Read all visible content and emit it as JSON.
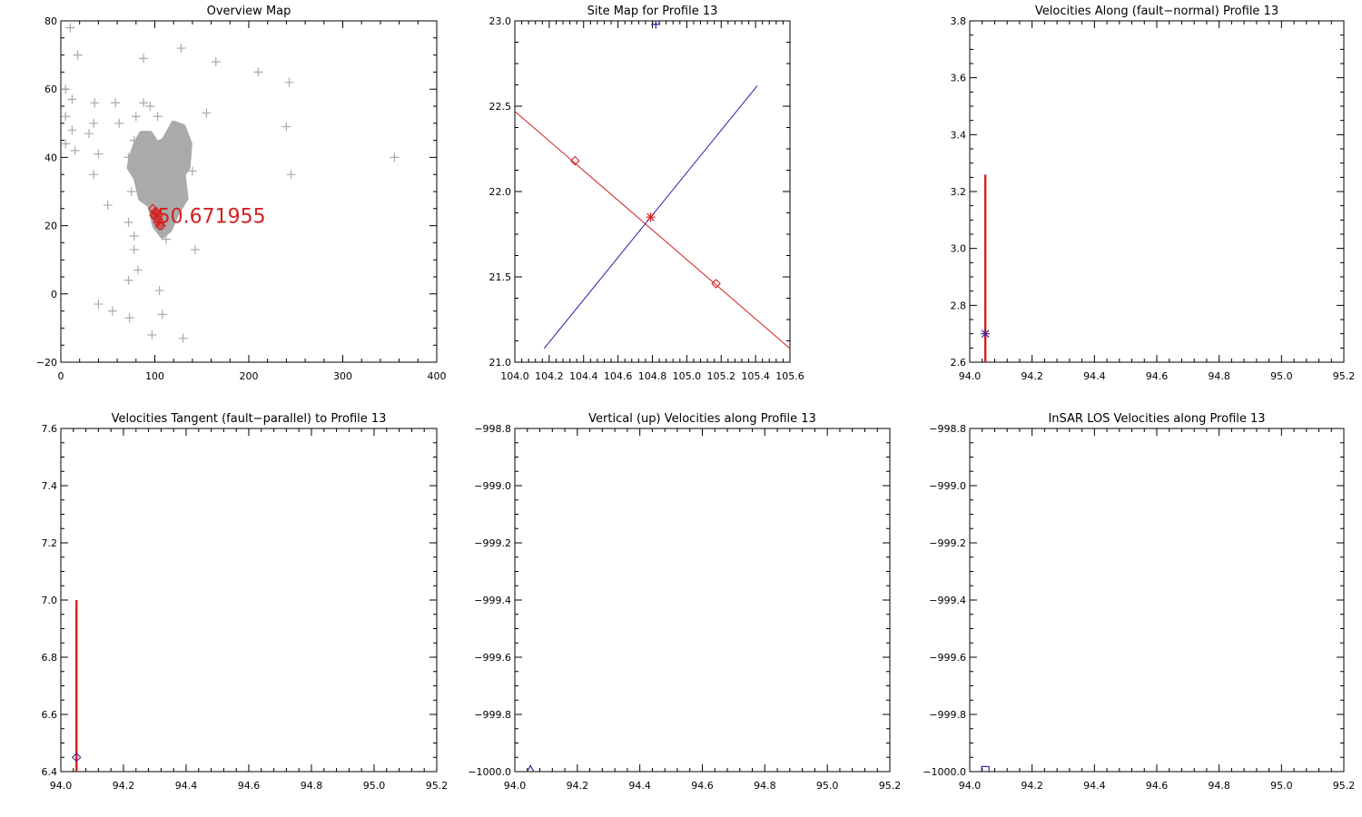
{
  "chart_data": [
    {
      "id": "overview",
      "type": "scatter",
      "title": "Overview Map",
      "xlim": [
        0,
        400
      ],
      "ylim": [
        -20,
        80
      ],
      "xticks": [
        0,
        100,
        200,
        300,
        400
      ],
      "xtick_labels": [
        "0",
        "100",
        "200",
        "300",
        "400"
      ],
      "yticks": [
        -20,
        0,
        20,
        40,
        60,
        80
      ],
      "ytick_labels": [
        "−20",
        "0",
        "20",
        "40",
        "60",
        "80"
      ],
      "annotation": {
        "text": "50.671955",
        "x": 103,
        "y": 23,
        "color": "#d42020"
      },
      "series": [
        {
          "marker": "plus",
          "color": "#aaaaaa",
          "points": [
            [
              10,
              78
            ],
            [
              18,
              70
            ],
            [
              88,
              69
            ],
            [
              128,
              72
            ],
            [
              165,
              68
            ],
            [
              210,
              65
            ],
            [
              243,
              62
            ],
            [
              5,
              60
            ],
            [
              12,
              57
            ],
            [
              36,
              56
            ],
            [
              58,
              56
            ],
            [
              88,
              56
            ],
            [
              95,
              55
            ],
            [
              155,
              53
            ],
            [
              103,
              52
            ],
            [
              80,
              52
            ],
            [
              5,
              52
            ],
            [
              35,
              50
            ],
            [
              62,
              50
            ],
            [
              240,
              49
            ],
            [
              12,
              48
            ],
            [
              30,
              47
            ],
            [
              78,
              45
            ],
            [
              124,
              45
            ],
            [
              5,
              44
            ],
            [
              15,
              42
            ],
            [
              40,
              41
            ],
            [
              72,
              40
            ],
            [
              355,
              40
            ],
            [
              112,
              38
            ],
            [
              140,
              36
            ],
            [
              245,
              35
            ],
            [
              35,
              35
            ],
            [
              105,
              33
            ],
            [
              75,
              30
            ],
            [
              130,
              28
            ],
            [
              50,
              26
            ],
            [
              112,
              24
            ],
            [
              72,
              21
            ],
            [
              108,
              20
            ],
            [
              112,
              18
            ],
            [
              78,
              17
            ],
            [
              143,
              13
            ],
            [
              78,
              13
            ],
            [
              82,
              7
            ],
            [
              72,
              4
            ],
            [
              105,
              1
            ],
            [
              40,
              -3
            ],
            [
              55,
              -5
            ],
            [
              73,
              -7
            ],
            [
              108,
              -6
            ],
            [
              97,
              -12
            ],
            [
              130,
              -13
            ],
            [
              112,
              16
            ]
          ]
        },
        {
          "marker": "plus-cluster",
          "color": "#aaaaaa",
          "blobs": [
            [
              [
                75,
                40
              ],
              [
                80,
                44
              ],
              [
                86,
                47
              ],
              [
                95,
                47
              ],
              [
                102,
                44
              ],
              [
                110,
                45
              ],
              [
                120,
                50
              ],
              [
                130,
                49
              ],
              [
                137,
                44
              ],
              [
                135,
                37
              ],
              [
                130,
                35
              ],
              [
                133,
                28
              ],
              [
                124,
                24
              ],
              [
                116,
                19
              ],
              [
                108,
                17
              ],
              [
                100,
                20
              ],
              [
                95,
                26
              ],
              [
                85,
                28
              ],
              [
                80,
                34
              ],
              [
                73,
                37
              ]
            ]
          ]
        },
        {
          "marker": "diamond",
          "color": "#d42020",
          "points": [
            [
              98,
              25
            ],
            [
              100,
              24
            ],
            [
              101,
              23
            ],
            [
              102,
              22
            ],
            [
              103,
              21
            ],
            [
              104,
              22
            ],
            [
              105,
              20
            ],
            [
              106,
              21
            ],
            [
              99,
              23
            ],
            [
              102,
              24
            ],
            [
              104,
              23
            ],
            [
              107,
              20
            ]
          ]
        }
      ]
    },
    {
      "id": "site",
      "type": "line",
      "title": "Site Map for Profile 13",
      "xlim": [
        104.0,
        105.6
      ],
      "ylim": [
        21.0,
        23.0
      ],
      "xticks": [
        104.0,
        104.2,
        104.4,
        104.6,
        104.8,
        105.0,
        105.2,
        105.4,
        105.6
      ],
      "xtick_labels": [
        "104.0",
        "104.2",
        "104.4",
        "104.6",
        "104.8",
        "105.0",
        "105.2",
        "105.4",
        "105.6"
      ],
      "yticks": [
        21.0,
        21.5,
        22.0,
        22.5,
        23.0
      ],
      "ytick_labels": [
        "21.0",
        "21.5",
        "22.0",
        "22.5",
        "23.0"
      ],
      "series": [
        {
          "style": "line",
          "color": "#d42020",
          "points": [
            [
              104.0,
              22.47
            ],
            [
              105.6,
              21.08
            ]
          ]
        },
        {
          "style": "line",
          "color": "#2020a0",
          "points": [
            [
              104.17,
              21.08
            ],
            [
              105.41,
              22.62
            ]
          ]
        },
        {
          "style": "markers",
          "marker": "diamond",
          "color": "#d42020",
          "points": [
            [
              104.35,
              22.18
            ],
            [
              105.17,
              21.46
            ]
          ]
        },
        {
          "style": "markers",
          "marker": "asterisk",
          "color": "#d42020",
          "points": [
            [
              104.79,
              21.85
            ]
          ]
        },
        {
          "style": "markers",
          "marker": "plus",
          "color": "#2020a0",
          "points": [
            [
              104.82,
              22.98
            ]
          ]
        }
      ]
    },
    {
      "id": "along",
      "type": "line",
      "title": "Velocities Along (fault−normal) Profile 13",
      "xlim": [
        94.0,
        95.2
      ],
      "ylim": [
        2.6,
        3.8
      ],
      "xticks": [
        94.0,
        94.2,
        94.4,
        94.6,
        94.8,
        95.0,
        95.2
      ],
      "xtick_labels": [
        "94.0",
        "94.2",
        "94.4",
        "94.6",
        "94.8",
        "95.0",
        "95.2"
      ],
      "yticks": [
        2.6,
        2.8,
        3.0,
        3.2,
        3.4,
        3.6,
        3.8
      ],
      "ytick_labels": [
        "2.6",
        "2.8",
        "3.0",
        "3.2",
        "3.4",
        "3.6",
        "3.8"
      ],
      "series": [
        {
          "style": "errorbar",
          "color": "#d42020",
          "points": [
            [
              94.05,
              2.6
            ],
            [
              94.05,
              3.26
            ]
          ]
        },
        {
          "style": "markers",
          "marker": "asterisk",
          "color": "#502090",
          "points": [
            [
              94.05,
              2.7
            ]
          ]
        }
      ]
    },
    {
      "id": "tangent",
      "type": "line",
      "title": "Velocities Tangent (fault−parallel) to Profile 13",
      "xlim": [
        94.0,
        95.2
      ],
      "ylim": [
        6.4,
        7.6
      ],
      "xticks": [
        94.0,
        94.2,
        94.4,
        94.6,
        94.8,
        95.0,
        95.2
      ],
      "xtick_labels": [
        "94.0",
        "94.2",
        "94.4",
        "94.6",
        "94.8",
        "95.0",
        "95.2"
      ],
      "yticks": [
        6.4,
        6.6,
        6.8,
        7.0,
        7.2,
        7.4,
        7.6
      ],
      "ytick_labels": [
        "6.4",
        "6.6",
        "6.8",
        "7.0",
        "7.2",
        "7.4",
        "7.6"
      ],
      "series": [
        {
          "style": "errorbar",
          "color": "#d42020",
          "points": [
            [
              94.05,
              6.4
            ],
            [
              94.05,
              7.0
            ]
          ]
        },
        {
          "style": "markers",
          "marker": "diamond",
          "color": "#502090",
          "points": [
            [
              94.05,
              6.45
            ]
          ]
        }
      ]
    },
    {
      "id": "vertical",
      "type": "line",
      "title": "Vertical (up) Velocities along Profile 13",
      "xlim": [
        94.0,
        95.2
      ],
      "ylim": [
        -1000.0,
        -998.8
      ],
      "xticks": [
        94.0,
        94.2,
        94.4,
        94.6,
        94.8,
        95.0,
        95.2
      ],
      "xtick_labels": [
        "94.0",
        "94.2",
        "94.4",
        "94.6",
        "94.8",
        "95.0",
        "95.2"
      ],
      "yticks": [
        -1000.0,
        -999.8,
        -999.6,
        -999.4,
        -999.2,
        -999.0,
        -998.8
      ],
      "ytick_labels": [
        "−1000.0",
        "−999.8",
        "−999.6",
        "−999.4",
        "−999.2",
        "−999.0",
        "−998.8"
      ],
      "series": [
        {
          "style": "markers",
          "marker": "triangle",
          "color": "#2020a0",
          "points": [
            [
              94.05,
              -999.995
            ]
          ]
        }
      ]
    },
    {
      "id": "insar",
      "type": "line",
      "title": "InSAR LOS Velocities along Profile 13",
      "xlim": [
        94.0,
        95.2
      ],
      "ylim": [
        -1000.0,
        -998.8
      ],
      "xticks": [
        94.0,
        94.2,
        94.4,
        94.6,
        94.8,
        95.0,
        95.2
      ],
      "xtick_labels": [
        "94.0",
        "94.2",
        "94.4",
        "94.6",
        "94.8",
        "95.0",
        "95.2"
      ],
      "yticks": [
        -1000.0,
        -999.8,
        -999.6,
        -999.4,
        -999.2,
        -999.0,
        -998.8
      ],
      "ytick_labels": [
        "−1000.0",
        "−999.8",
        "−999.6",
        "−999.4",
        "−999.2",
        "−999.0",
        "−998.8"
      ],
      "series": [
        {
          "style": "markers",
          "marker": "square",
          "color": "#2020a0",
          "points": [
            [
              94.05,
              -999.995
            ]
          ]
        }
      ]
    }
  ]
}
